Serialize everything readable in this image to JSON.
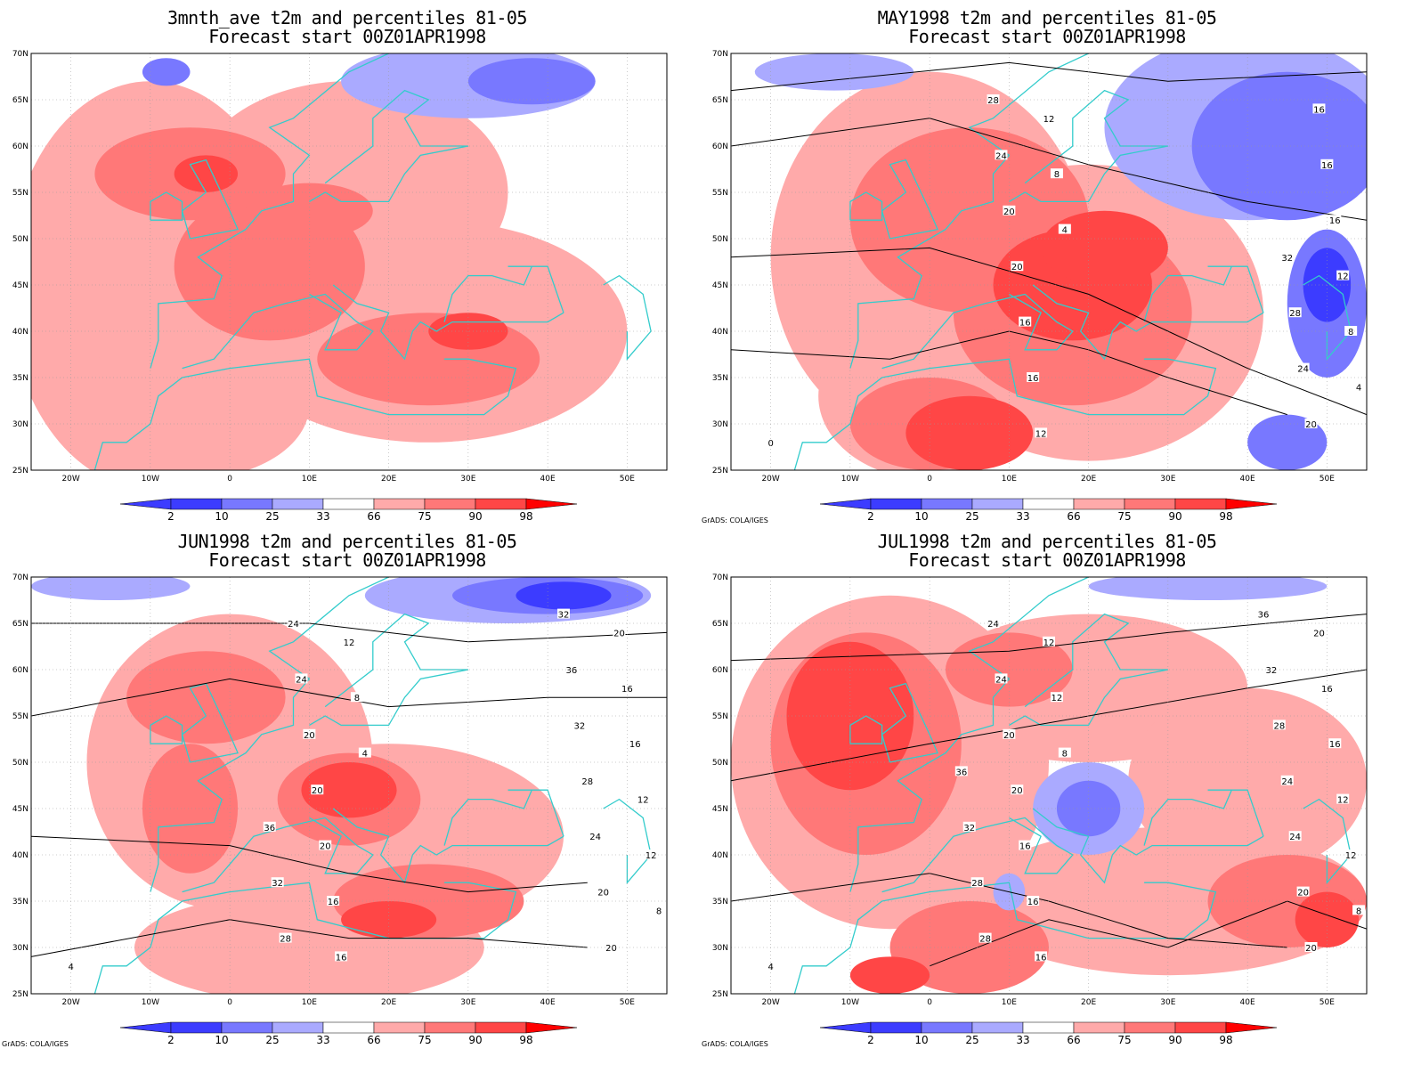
{
  "panels": [
    {
      "id": "p1",
      "title_line1": "3mnth_ave t2m and percentiles 81-05",
      "title_line2": "Forecast start 00Z01APR1998",
      "credit": "",
      "contour_labels": []
    },
    {
      "id": "p2",
      "title_line1": "MAY1998 t2m and percentiles 81-05",
      "title_line2": "Forecast start 00Z01APR1998",
      "credit": "GrADS: COLA/IGES",
      "contour_labels": [
        "0",
        "4",
        "4",
        "8",
        "8",
        "12",
        "12",
        "12",
        "16",
        "16",
        "16",
        "16",
        "16",
        "20",
        "20",
        "20",
        "24",
        "24",
        "28",
        "28",
        "32"
      ]
    },
    {
      "id": "p3",
      "title_line1": "JUN1998 t2m and percentiles 81-05",
      "title_line2": "Forecast start 00Z01APR1998",
      "credit": "GrADS: COLA/IGES",
      "contour_labels": [
        "4",
        "4",
        "8",
        "8",
        "12",
        "12",
        "12",
        "16",
        "16",
        "16",
        "16",
        "20",
        "20",
        "20",
        "20",
        "20",
        "20",
        "24",
        "24",
        "24",
        "28",
        "28",
        "32",
        "32",
        "36",
        "36",
        "32"
      ]
    },
    {
      "id": "p4",
      "title_line1": "JUL1998 t2m and percentiles 81-05",
      "title_line2": "Forecast start 00Z01APR1998",
      "credit": "GrADS: COLA/IGES",
      "contour_labels": [
        "4",
        "8",
        "8",
        "12",
        "12",
        "12",
        "12",
        "16",
        "16",
        "16",
        "16",
        "16",
        "20",
        "20",
        "20",
        "20",
        "20",
        "24",
        "24",
        "24",
        "24",
        "28",
        "28",
        "28",
        "32",
        "32",
        "36",
        "36"
      ]
    }
  ],
  "lat_ticks": [
    "70N",
    "65N",
    "60N",
    "55N",
    "50N",
    "45N",
    "40N",
    "35N",
    "30N",
    "25N"
  ],
  "lon_ticks": [
    "20W",
    "10W",
    "0",
    "10E",
    "20E",
    "30E",
    "40E",
    "50E"
  ],
  "colorbar_labels": [
    "2",
    "10",
    "25",
    "33",
    "66",
    "75",
    "90",
    "98"
  ],
  "colors": {
    "blue_dark": "#3c3cff",
    "blue_mid": "#7878ff",
    "blue_light": "#aaaaff",
    "white": "#ffffff",
    "red_light": "#ffaaaa",
    "red_mid": "#ff7878",
    "red_strong": "#ff4646",
    "red_dark": "#ff0000",
    "coast": "#33cccc",
    "contour": "#000000"
  }
}
